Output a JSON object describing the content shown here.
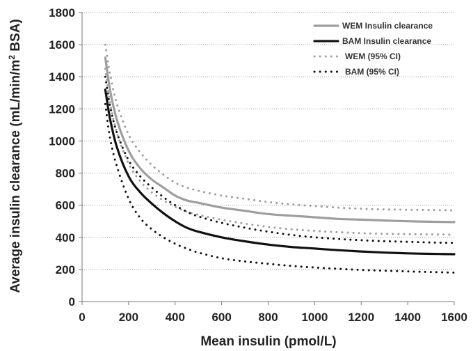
{
  "chart_data": {
    "type": "line",
    "xlabel": "Mean insulin (pmol/L)",
    "ylabel_main": "Average insulin clearance (mL/min/m",
    "ylabel_sup": "2",
    "ylabel_tail": " BSA)",
    "xlim": [
      0,
      1600
    ],
    "ylim": [
      0,
      1800
    ],
    "x_ticks": [
      0,
      200,
      400,
      600,
      800,
      1000,
      1200,
      1400,
      1600
    ],
    "y_ticks": [
      0,
      200,
      400,
      600,
      800,
      1000,
      1200,
      1400,
      1600,
      1800
    ],
    "x_tick_labels": [
      "0",
      "200",
      "400",
      "600",
      "800",
      "1000",
      "1200",
      "1400",
      "1600"
    ],
    "y_tick_labels": [
      "0",
      "200",
      "400",
      "600",
      "800",
      "1000",
      "1200",
      "1400",
      "1600",
      "1800"
    ],
    "grid": {
      "horizontal": true,
      "style": "dotted"
    },
    "legend_position": "top-right",
    "series": [
      {
        "name": "WEM Insulin clearance",
        "color": "#9e9e9e",
        "style": "solid",
        "x": [
          100,
          120,
          150,
          200,
          250,
          300,
          350,
          400,
          450,
          500,
          600,
          700,
          800,
          900,
          1000,
          1100,
          1200,
          1300,
          1400,
          1500,
          1600
        ],
        "y": [
          1520,
          1320,
          1130,
          940,
          830,
          760,
          710,
          660,
          630,
          615,
          585,
          565,
          545,
          535,
          525,
          515,
          510,
          505,
          500,
          497,
          495
        ]
      },
      {
        "name": "BAM Insulin clearance",
        "color": "#111111",
        "style": "solid",
        "x": [
          100,
          120,
          150,
          200,
          250,
          300,
          350,
          400,
          450,
          500,
          600,
          700,
          800,
          900,
          1000,
          1100,
          1200,
          1300,
          1400,
          1500,
          1600
        ],
        "y": [
          1320,
          1140,
          960,
          780,
          680,
          610,
          550,
          500,
          460,
          435,
          400,
          375,
          355,
          340,
          330,
          320,
          312,
          305,
          300,
          297,
          295
        ]
      },
      {
        "name": "WEM (95% CI)",
        "color": "#9e9e9e",
        "style": "dotted",
        "x": [
          100,
          120,
          150,
          200,
          250,
          300,
          350,
          400,
          450,
          500,
          600,
          700,
          800,
          900,
          1000,
          1100,
          1200,
          1300,
          1400,
          1500,
          1600
        ],
        "y": [
          1600,
          1420,
          1230,
          1040,
          930,
          850,
          790,
          740,
          710,
          690,
          660,
          640,
          620,
          605,
          595,
          585,
          578,
          574,
          572,
          570,
          568
        ]
      },
      {
        "name": "WEM (95% CI)",
        "color": "#9e9e9e",
        "style": "dotted",
        "x": [
          100,
          120,
          150,
          200,
          250,
          300,
          350,
          400,
          450,
          500,
          600,
          700,
          800,
          900,
          1000,
          1100,
          1200,
          1300,
          1400,
          1500,
          1600
        ],
        "y": [
          1450,
          1240,
          1050,
          860,
          750,
          680,
          630,
          590,
          560,
          540,
          510,
          485,
          465,
          450,
          440,
          432,
          426,
          422,
          420,
          418,
          417
        ]
      },
      {
        "name": "BAM (95% CI)",
        "color": "#111111",
        "style": "dotted",
        "x": [
          100,
          120,
          150,
          200,
          250,
          300,
          350,
          400,
          450,
          500,
          600,
          700,
          800,
          900,
          1000,
          1100,
          1200,
          1300,
          1400,
          1500,
          1600
        ],
        "y": [
          1400,
          1220,
          1050,
          880,
          780,
          710,
          650,
          600,
          560,
          530,
          490,
          460,
          435,
          415,
          400,
          390,
          382,
          376,
          372,
          368,
          365
        ]
      },
      {
        "name": "BAM (95% CI)",
        "color": "#111111",
        "style": "dotted",
        "x": [
          100,
          120,
          150,
          200,
          250,
          300,
          350,
          400,
          450,
          500,
          600,
          700,
          800,
          900,
          1000,
          1100,
          1200,
          1300,
          1400,
          1500,
          1600
        ],
        "y": [
          1230,
          1020,
          840,
          640,
          520,
          450,
          400,
          360,
          330,
          305,
          270,
          250,
          235,
          222,
          212,
          204,
          197,
          192,
          188,
          184,
          180
        ]
      }
    ],
    "legend": [
      {
        "label": "WEM Insulin clearance",
        "color": "#9e9e9e",
        "style": "solid"
      },
      {
        "label": "BAM Insulin clearance",
        "color": "#111111",
        "style": "solid"
      },
      {
        "label": "WEM (95% CI)",
        "color": "#9e9e9e",
        "style": "dotted"
      },
      {
        "label": "BAM (95% CI)",
        "color": "#111111",
        "style": "dotted"
      }
    ]
  }
}
